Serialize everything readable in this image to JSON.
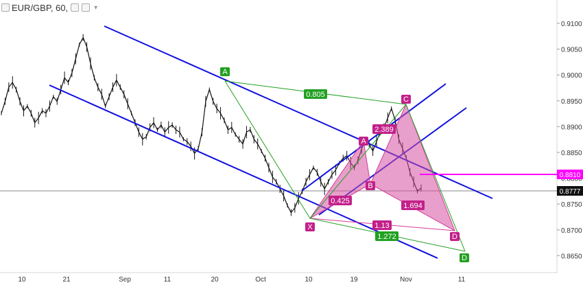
{
  "header": {
    "symbol": "EUR/GBP, 60,",
    "icons": [
      "eye-icon",
      "settings-icon"
    ],
    "dropdown_icon": "chevron-down-icon"
  },
  "colors": {
    "channel": "#1010e0",
    "harmonic_green_line": "#22a022",
    "harmonic_pink": "#d63a9a",
    "pink_fill": "rgba(214,80,160,0.55)",
    "price_line": "#888888",
    "marker_line": "#ff00ff",
    "bg": "#ffffff"
  },
  "price_axis": {
    "ticks": [
      "0.9100",
      "0.9050",
      "0.9000",
      "0.8950",
      "0.8900",
      "0.8850",
      "0.8800",
      "0.8750",
      "0.8700",
      "0.8650"
    ],
    "current_price": "0.8777",
    "marker_price": "0.8810"
  },
  "time_axis": {
    "ticks": [
      "10",
      "21",
      "Sep",
      "11",
      "20",
      "Oct",
      "10",
      "19",
      "Nov",
      "11"
    ]
  },
  "pattern_green": {
    "points": {
      "X": "X",
      "A": "A",
      "C": "C",
      "D": "D"
    },
    "ratios": {
      "xa_to_c": "0.805",
      "xd": "1.272"
    }
  },
  "pattern_pink": {
    "points": {
      "X": "X",
      "A": "A",
      "B": "B",
      "C": "C",
      "D": "D"
    },
    "ratios": {
      "ab": "0.425",
      "bc": "2.389",
      "cd": "1.694",
      "xd": "1.13"
    }
  },
  "chart_data": {
    "type": "line",
    "title": "EUR/GBP, 60,",
    "xlabel": "",
    "ylabel": "",
    "ylim": [
      0.863,
      0.9125
    ],
    "x_ticks": [
      "10",
      "21",
      "Sep",
      "11",
      "20",
      "Oct",
      "10",
      "19",
      "Nov",
      "11"
    ],
    "y_ticks": [
      0.91,
      0.905,
      0.9,
      0.895,
      0.89,
      0.885,
      0.88,
      0.875,
      0.87,
      0.865
    ],
    "series": [
      {
        "values": [
          0.8935,
          0.896,
          0.899,
          0.9,
          0.8985,
          0.896,
          0.894,
          0.895,
          0.8935,
          0.8915,
          0.8925,
          0.894,
          0.8935,
          0.895,
          0.897,
          0.896,
          0.8985,
          0.901,
          0.9,
          0.902,
          0.905,
          0.908,
          0.9095,
          0.9075,
          0.904,
          0.901,
          0.899,
          0.8975,
          0.895,
          0.897,
          0.899,
          0.9005,
          0.899,
          0.8975,
          0.8955,
          0.8935,
          0.8915,
          0.8895,
          0.888,
          0.8885,
          0.8905,
          0.8915,
          0.89,
          0.891,
          0.8895,
          0.8905,
          0.891,
          0.89,
          0.8895,
          0.888,
          0.8875,
          0.8865,
          0.885,
          0.886,
          0.8895,
          0.896,
          0.8985,
          0.896,
          0.8945,
          0.8935,
          0.892,
          0.89,
          0.8905,
          0.889,
          0.888,
          0.887,
          0.8895,
          0.89,
          0.888,
          0.887,
          0.8855,
          0.884,
          0.882,
          0.88,
          0.879,
          0.8775,
          0.876,
          0.874,
          0.8725,
          0.8735,
          0.8755,
          0.877,
          0.879,
          0.8805,
          0.882,
          0.881,
          0.879,
          0.8775,
          0.879,
          0.8805,
          0.8815,
          0.883,
          0.884,
          0.8845,
          0.883,
          0.882,
          0.8835,
          0.886,
          0.888,
          0.887,
          0.8855,
          0.8875,
          0.8895,
          0.8905,
          0.8925,
          0.8945,
          0.892,
          0.888,
          0.886,
          0.884,
          0.881,
          0.879,
          0.877,
          0.8777
        ]
      }
    ],
    "channel_lines": true,
    "current_price": 0.8777,
    "marker_price": 0.881,
    "grid": false,
    "legend": "none"
  }
}
